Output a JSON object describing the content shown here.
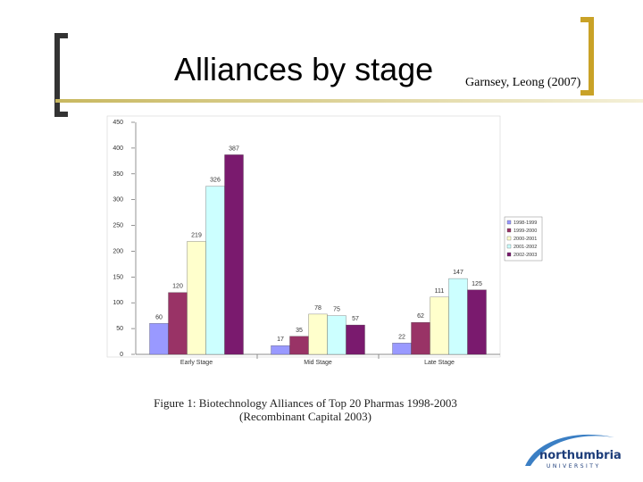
{
  "slide": {
    "title": "Alliances by stage",
    "citation": "Garnsey, Leong (2007)"
  },
  "chart_data": {
    "type": "bar",
    "categories": [
      "Early Stage",
      "Mid Stage",
      "Late Stage"
    ],
    "series": [
      {
        "name": "1998-1999",
        "color": "#9999ff",
        "values": [
          60,
          17,
          22
        ]
      },
      {
        "name": "1999-2000",
        "color": "#993366",
        "values": [
          120,
          35,
          62
        ]
      },
      {
        "name": "2000-2001",
        "color": "#ffffcc",
        "values": [
          219,
          78,
          111
        ]
      },
      {
        "name": "2001-2002",
        "color": "#ccffff",
        "values": [
          326,
          75,
          147
        ]
      },
      {
        "name": "2002-2003",
        "color": "#7a1a6e",
        "values": [
          387,
          57,
          125
        ]
      }
    ],
    "ylim": [
      0,
      450
    ],
    "yticks": [
      0,
      50,
      100,
      150,
      200,
      250,
      300,
      350,
      400,
      450
    ],
    "caption": [
      "Figure 1: Biotechnology Alliances of Top 20 Pharmas 1998-2003",
      "(Recombinant Capital 2003)"
    ]
  },
  "logo": {
    "name": "northumbria",
    "subtitle": "UNIVERSITY"
  }
}
